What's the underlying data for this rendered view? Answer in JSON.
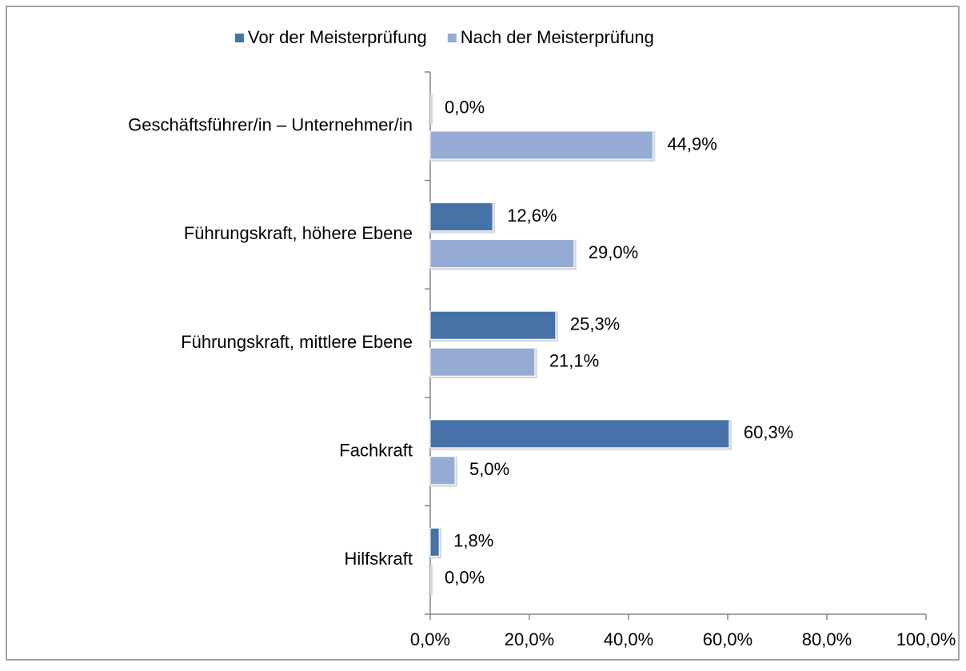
{
  "chart_data": {
    "type": "barh",
    "categories": [
      "Geschäftsführer/in – Unternehmer/in",
      "Führungskraft, höhere Ebene",
      "Führungskraft, mittlere Ebene",
      "Fachkraft",
      "Hilfskraft"
    ],
    "series": [
      {
        "name": "Vor der Meisterprüfung",
        "color": "#4672a8",
        "values": [
          0.0,
          12.6,
          25.3,
          60.3,
          1.8
        ],
        "value_labels": [
          "0,0%",
          "12,6%",
          "25,3%",
          "60,3%",
          "1,8%"
        ]
      },
      {
        "name": "Nach der Meisterprüfung",
        "color": "#95abd4",
        "values": [
          44.9,
          29.0,
          21.1,
          5.0,
          0.0
        ],
        "value_labels": [
          "44,9%",
          "29,0%",
          "21,1%",
          "5,0%",
          "0,0%"
        ]
      }
    ],
    "xlim": [
      0,
      100
    ],
    "xticks": [
      {
        "value": 0,
        "label": "0,0%"
      },
      {
        "value": 20,
        "label": "20,0%"
      },
      {
        "value": 40,
        "label": "40,0%"
      },
      {
        "value": 60,
        "label": "60,0%"
      },
      {
        "value": 80,
        "label": "80,0%"
      },
      {
        "value": 100,
        "label": "100,0%"
      }
    ],
    "legend": "top"
  }
}
